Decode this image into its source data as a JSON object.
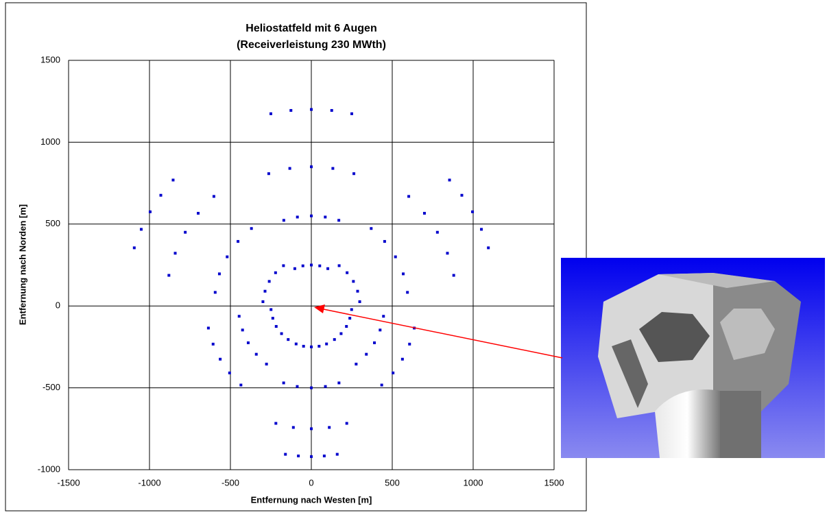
{
  "chart_data": {
    "type": "scatter",
    "title": "Heliostatfeld mit 6 Augen",
    "subtitle": "(Receiverleistung 230 MWth)",
    "xlabel": "Entfernung nach Westen [m]",
    "ylabel": "Entfernung nach Norden [m]",
    "color": "#0000cc",
    "grid": true,
    "xlim": [
      -1500,
      1500
    ],
    "xticks": [
      -1500,
      -1000,
      -500,
      0,
      500,
      1000,
      1500
    ],
    "ylim": [
      -1000,
      1500
    ],
    "yticks": [
      -1000,
      -500,
      0,
      500,
      1000,
      1500
    ],
    "x": [
      -102,
      -52,
      0,
      52,
      102,
      -170,
      -86,
      0,
      86,
      170,
      -263,
      -133,
      0,
      133,
      263,
      -250,
      -126,
      0,
      126,
      250,
      299,
      286,
      260,
      221,
      172,
      594,
      568,
      520,
      453,
      370,
      880,
      841,
      779,
      699,
      602,
      1094,
      1051,
      996,
      930,
      854,
      -299,
      -286,
      -260,
      -221,
      -172,
      -594,
      -568,
      -520,
      -453,
      -370,
      -880,
      -841,
      -779,
      -699,
      -602,
      -1094,
      -1051,
      -996,
      -930,
      -854,
      249,
      238,
      217,
      184,
      143,
      446,
      425,
      390,
      340,
      277,
      636,
      607,
      563,
      505,
      435,
      -249,
      -238,
      -217,
      -184,
      -143,
      -446,
      -425,
      -390,
      -340,
      -277,
      -636,
      -607,
      -563,
      -505,
      -435,
      -94,
      -48,
      0,
      48,
      94,
      -171,
      -87,
      0,
      87,
      171,
      -219,
      -111,
      0,
      111,
      219,
      -160,
      -80,
      0,
      80,
      160
    ],
    "y": [
      228,
      245,
      250,
      245,
      228,
      523,
      543,
      550,
      543,
      523,
      808,
      840,
      850,
      840,
      808,
      1174,
      1194,
      1200,
      1194,
      1174,
      26,
      90,
      150,
      203,
      246,
      83,
      196,
      300,
      394,
      473,
      187,
      322,
      450,
      566,
      669,
      355,
      468,
      575,
      676,
      769,
      26,
      90,
      150,
      203,
      246,
      83,
      196,
      300,
      394,
      473,
      187,
      322,
      450,
      566,
      669,
      355,
      468,
      575,
      676,
      769,
      -22,
      -75,
      -125,
      -169,
      -205,
      -63,
      -147,
      -225,
      -295,
      -355,
      -135,
      -233,
      -325,
      -409,
      -483,
      -22,
      -75,
      -125,
      -169,
      -205,
      -63,
      -147,
      -225,
      -295,
      -355,
      -135,
      -233,
      -325,
      -409,
      -483,
      -232,
      -246,
      -250,
      -246,
      -232,
      -470,
      -492,
      -500,
      -492,
      -470,
      -717,
      -742,
      -750,
      -742,
      -717,
      -906,
      -916,
      -920,
      -916,
      -906
    ]
  }
}
